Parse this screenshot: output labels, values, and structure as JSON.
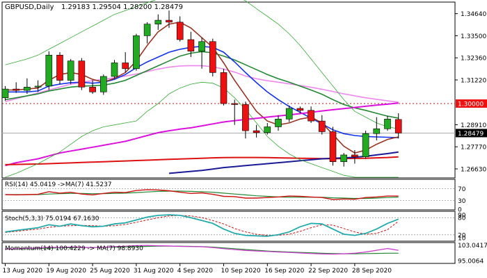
{
  "header": {
    "symbol": "GBPUSD,Daily",
    "ohlc": "1.29183 1.29504 1.28200 1.28479"
  },
  "colors": {
    "bull": "#22aa22",
    "bear": "#ee1111",
    "ma_dark": "#1a1a99",
    "ma_blue": "#1133ee",
    "ma_green": "#228833",
    "ma_magenta": "#dd11dd",
    "ma_pink": "#ee88ee",
    "ma_brown": "#993322",
    "ma_red": "#dd1111",
    "bollinger": "#33aa33",
    "level_label_bg": "#ee1111",
    "price_label_bg": "#000000"
  },
  "chart_data": {
    "type": "candlestick",
    "title": "GBPUSD,Daily",
    "x_tick_labels": [
      "13 Aug 2020",
      "19 Aug 2020",
      "25 Aug 2020",
      "31 Aug 2020",
      "4 Sep 2020",
      "10 Sep 2020",
      "16 Sep 2020",
      "22 Sep 2020",
      "28 Sep 2020"
    ],
    "x_tick_index": [
      0,
      4,
      8,
      12,
      16,
      20,
      24,
      28,
      32
    ],
    "price_axis": {
      "ylim": [
        1.262,
        1.352
      ],
      "tick_values": [
        1.3464,
        1.335,
        1.3236,
        1.3122,
        1.2891,
        1.2777,
        1.2663
      ],
      "tick_labels": [
        "1.34640",
        "1.33500",
        "1.32360",
        "1.31220",
        "1.28910",
        "1.27770",
        "1.26630"
      ],
      "level_value": 1.3,
      "level_label": "1.30000",
      "last_price": 1.28479,
      "last_price_label": "1.28479"
    },
    "candles": [
      {
        "o": 1.303,
        "h": 1.309,
        "l": 1.3015,
        "c": 1.3075
      },
      {
        "o": 1.3075,
        "h": 1.311,
        "l": 1.3055,
        "c": 1.3068
      },
      {
        "o": 1.3068,
        "h": 1.313,
        "l": 1.305,
        "c": 1.3085
      },
      {
        "o": 1.3085,
        "h": 1.312,
        "l": 1.306,
        "c": 1.309
      },
      {
        "o": 1.309,
        "h": 1.327,
        "l": 1.307,
        "c": 1.325
      },
      {
        "o": 1.325,
        "h": 1.3265,
        "l": 1.31,
        "c": 1.312
      },
      {
        "o": 1.312,
        "h": 1.323,
        "l": 1.31,
        "c": 1.322
      },
      {
        "o": 1.322,
        "h": 1.3235,
        "l": 1.307,
        "c": 1.3085
      },
      {
        "o": 1.3085,
        "h": 1.312,
        "l": 1.305,
        "c": 1.306
      },
      {
        "o": 1.306,
        "h": 1.315,
        "l": 1.3045,
        "c": 1.314
      },
      {
        "o": 1.314,
        "h": 1.3225,
        "l": 1.313,
        "c": 1.321
      },
      {
        "o": 1.321,
        "h": 1.3265,
        "l": 1.316,
        "c": 1.318
      },
      {
        "o": 1.318,
        "h": 1.336,
        "l": 1.317,
        "c": 1.335
      },
      {
        "o": 1.335,
        "h": 1.342,
        "l": 1.331,
        "c": 1.341
      },
      {
        "o": 1.341,
        "h": 1.346,
        "l": 1.338,
        "c": 1.343
      },
      {
        "o": 1.343,
        "h": 1.348,
        "l": 1.339,
        "c": 1.342
      },
      {
        "o": 1.342,
        "h": 1.345,
        "l": 1.332,
        "c": 1.333
      },
      {
        "o": 1.333,
        "h": 1.337,
        "l": 1.324,
        "c": 1.327
      },
      {
        "o": 1.327,
        "h": 1.334,
        "l": 1.318,
        "c": 1.332
      },
      {
        "o": 1.332,
        "h": 1.3335,
        "l": 1.314,
        "c": 1.316
      },
      {
        "o": 1.316,
        "h": 1.318,
        "l": 1.299,
        "c": 1.3
      },
      {
        "o": 1.3,
        "h": 1.302,
        "l": 1.289,
        "c": 1.2995
      },
      {
        "o": 1.2995,
        "h": 1.301,
        "l": 1.282,
        "c": 1.286
      },
      {
        "o": 1.286,
        "h": 1.289,
        "l": 1.2825,
        "c": 1.285
      },
      {
        "o": 1.285,
        "h": 1.29,
        "l": 1.284,
        "c": 1.288
      },
      {
        "o": 1.288,
        "h": 1.294,
        "l": 1.286,
        "c": 1.292
      },
      {
        "o": 1.292,
        "h": 1.299,
        "l": 1.2905,
        "c": 1.2975
      },
      {
        "o": 1.2975,
        "h": 1.2985,
        "l": 1.295,
        "c": 1.2965
      },
      {
        "o": 1.2965,
        "h": 1.2985,
        "l": 1.29,
        "c": 1.291
      },
      {
        "o": 1.291,
        "h": 1.294,
        "l": 1.284,
        "c": 1.2855
      },
      {
        "o": 1.2855,
        "h": 1.288,
        "l": 1.268,
        "c": 1.27
      },
      {
        "o": 1.27,
        "h": 1.2745,
        "l": 1.2675,
        "c": 1.2735
      },
      {
        "o": 1.2735,
        "h": 1.276,
        "l": 1.269,
        "c": 1.2725
      },
      {
        "o": 1.2725,
        "h": 1.286,
        "l": 1.2715,
        "c": 1.2845
      },
      {
        "o": 1.2845,
        "h": 1.293,
        "l": 1.281,
        "c": 1.287
      },
      {
        "o": 1.287,
        "h": 1.2935,
        "l": 1.286,
        "c": 1.292
      },
      {
        "o": 1.2918,
        "h": 1.295,
        "l": 1.282,
        "c": 1.2848
      }
    ],
    "ma_lines": [
      {
        "key": "ma_pink",
        "values": [
          1.301,
          1.3025,
          1.304,
          1.3055,
          1.307,
          1.3085,
          1.31,
          1.311,
          1.3118,
          1.3125,
          1.3133,
          1.3142,
          1.3152,
          1.3165,
          1.3178,
          1.3188,
          1.3194,
          1.3196,
          1.3195,
          1.319,
          1.3178,
          1.3162,
          1.3142,
          1.3128,
          1.3118,
          1.311,
          1.3102,
          1.3093,
          1.3084,
          1.3074,
          1.3062,
          1.305,
          1.304,
          1.303,
          1.3022,
          1.3014,
          1.3007
        ]
      },
      {
        "key": "ma_green",
        "values": [
          1.302,
          1.303,
          1.304,
          1.305,
          1.3065,
          1.3075,
          1.3085,
          1.309,
          1.3092,
          1.3095,
          1.3105,
          1.312,
          1.3145,
          1.317,
          1.3195,
          1.322,
          1.3245,
          1.326,
          1.3268,
          1.3262,
          1.3245,
          1.3225,
          1.32,
          1.3175,
          1.315,
          1.3128,
          1.311,
          1.309,
          1.307,
          1.3048,
          1.302,
          1.2995,
          1.2978,
          1.2965,
          1.295,
          1.2935,
          1.2925
        ]
      },
      {
        "key": "ma_blue",
        "values": [
          1.306,
          1.306,
          1.306,
          1.3065,
          1.309,
          1.31,
          1.3108,
          1.311,
          1.3105,
          1.311,
          1.3125,
          1.315,
          1.3185,
          1.3215,
          1.324,
          1.3265,
          1.328,
          1.329,
          1.3295,
          1.329,
          1.3265,
          1.3215,
          1.316,
          1.3108,
          1.306,
          1.302,
          1.2985,
          1.2955,
          1.2925,
          1.2895,
          1.2865,
          1.2845,
          1.2835,
          1.283,
          1.2828,
          1.2826,
          1.2824
        ]
      },
      {
        "key": "ma_brown",
        "values": [
          1.307,
          1.307,
          1.3075,
          1.308,
          1.312,
          1.315,
          1.316,
          1.315,
          1.3125,
          1.311,
          1.313,
          1.316,
          1.322,
          1.33,
          1.337,
          1.341,
          1.342,
          1.339,
          1.334,
          1.329,
          1.321,
          1.312,
          1.304,
          1.296,
          1.291,
          1.289,
          1.29,
          1.292,
          1.293,
          1.29,
          1.284,
          1.278,
          1.2745,
          1.276,
          1.279,
          1.2815,
          1.2828
        ]
      },
      {
        "key": "ma_magenta",
        "values": [
          1.268,
          1.2695,
          1.2705,
          1.2715,
          1.273,
          1.2745,
          1.2755,
          1.2765,
          1.2775,
          1.2785,
          1.2795,
          1.2805,
          1.282,
          1.2835,
          1.285,
          1.286,
          1.2868,
          1.2875,
          1.2885,
          1.2895,
          1.2905,
          1.2912,
          1.2918,
          1.2924,
          1.293,
          1.2936,
          1.2942,
          1.2948,
          1.2955,
          1.2962,
          1.2968,
          1.2974,
          1.298,
          1.2986,
          1.2992,
          1.2997,
          1.3003
        ]
      },
      {
        "key": "ma_red",
        "values": [
          1.2685,
          1.2686,
          1.2687,
          1.2688,
          1.269,
          1.2692,
          1.2694,
          1.2696,
          1.2698,
          1.27,
          1.2702,
          1.2704,
          1.2706,
          1.2708,
          1.271,
          1.2712,
          1.2714,
          1.2716,
          1.2718,
          1.272,
          1.2721,
          1.2722,
          1.2722,
          1.2722,
          1.2721,
          1.272,
          1.2719,
          1.2718,
          1.2717,
          1.2716,
          1.2716,
          1.2716,
          1.2717,
          1.2718,
          1.272,
          1.2722,
          1.2725
        ]
      },
      {
        "key": "ma_dark",
        "start": 15,
        "values": [
          1.264,
          1.2645,
          1.265,
          1.2655,
          1.2662,
          1.267,
          1.2675,
          1.268,
          1.2685,
          1.269,
          1.2695,
          1.27,
          1.2705,
          1.271,
          1.2715,
          1.2718,
          1.272,
          1.2723,
          1.2728,
          1.2735,
          1.2742,
          1.275
        ]
      },
      {
        "key": "bollinger",
        "values": [
          1.32,
          1.3215,
          1.323,
          1.325,
          1.328,
          1.331,
          1.334,
          1.337,
          1.34,
          1.343,
          1.346,
          1.348,
          1.35,
          1.352,
          1.354,
          1.356,
          1.3575,
          1.3585,
          1.359,
          1.359,
          1.358,
          1.356,
          1.353,
          1.349,
          1.345,
          1.341,
          1.336,
          1.33,
          1.323,
          1.316,
          1.309,
          1.302,
          1.296,
          1.293,
          1.29,
          1.288,
          1.287
        ]
      },
      {
        "key": "bollinger",
        "values": [
          1.262,
          1.264,
          1.2665,
          1.269,
          1.272,
          1.275,
          1.279,
          1.283,
          1.286,
          1.288,
          1.289,
          1.29,
          1.291,
          1.296,
          1.3,
          1.305,
          1.308,
          1.31,
          1.311,
          1.3105,
          1.308,
          1.303,
          1.297,
          1.29,
          1.283,
          1.278,
          1.274,
          1.271,
          1.269,
          1.267,
          1.265,
          1.263,
          1.262,
          1.262,
          1.262,
          1.262,
          1.262
        ]
      }
    ],
    "rsi": {
      "label": "RSI(14) 45.0419  ->MA(7) 41.5237",
      "ylim": [
        0,
        100
      ],
      "tick_values": [
        70,
        30,
        0
      ],
      "tick_labels": [
        "70",
        "30",
        "0"
      ],
      "levels": [
        70,
        30
      ],
      "rsi_values": [
        50,
        49,
        50,
        51,
        60,
        55,
        58,
        52,
        49,
        54,
        58,
        57,
        64,
        67,
        66,
        63,
        58,
        54,
        56,
        51,
        44,
        43,
        38,
        38,
        40,
        42,
        45,
        44,
        42,
        40,
        33,
        35,
        34,
        40,
        42,
        45,
        45
      ],
      "ma_values": [
        50,
        50,
        50,
        50,
        52,
        53,
        54,
        54,
        53,
        53,
        54,
        55,
        57,
        59,
        61,
        62,
        62,
        61,
        60,
        58,
        55,
        52,
        49,
        46,
        44,
        42,
        41,
        41,
        41,
        41,
        39,
        38,
        37,
        37,
        38,
        40,
        41.5
      ]
    },
    "stoch": {
      "label": "Stoch(5,3,3) 75.0194 67.1630",
      "ylim": [
        0,
        100
      ],
      "tick_values": [
        90,
        80,
        20,
        10
      ],
      "tick_labels": [
        "90",
        "80",
        "20",
        "10"
      ],
      "levels": [
        80,
        20
      ],
      "k_values": [
        30,
        35,
        40,
        45,
        55,
        50,
        58,
        52,
        48,
        50,
        58,
        62,
        72,
        82,
        88,
        90,
        88,
        80,
        70,
        60,
        40,
        25,
        18,
        16,
        15,
        20,
        30,
        48,
        60,
        58,
        40,
        22,
        18,
        25,
        40,
        60,
        75
      ],
      "d_values": [
        28,
        32,
        36,
        40,
        46,
        50,
        52,
        53,
        52,
        50,
        52,
        56,
        64,
        72,
        80,
        86,
        88,
        86,
        80,
        70,
        58,
        42,
        30,
        22,
        18,
        18,
        22,
        32,
        45,
        55,
        54,
        42,
        30,
        22,
        25,
        38,
        67
      ]
    },
    "momentum": {
      "label": "Momentum(14) 100.4229  -> MA(7) 98.8930",
      "ylim": [
        94.0,
        104.0
      ],
      "tick_values": [
        103.0417,
        95.0064
      ],
      "tick_labels": [
        "103.0417",
        "95.0064"
      ],
      "mom_values": [
        101.0,
        101.2,
        101.4,
        101.5,
        102.0,
        101.8,
        102.1,
        101.9,
        101.8,
        102.0,
        102.3,
        102.5,
        102.8,
        102.9,
        102.7,
        102.6,
        102.4,
        102.3,
        102.2,
        101.8,
        101.2,
        100.7,
        100.3,
        100.0,
        99.8,
        99.5,
        99.3,
        99.0,
        98.7,
        98.5,
        98.4,
        98.6,
        98.9,
        99.5,
        100.4,
        101.3,
        100.4
      ],
      "ma_values": [
        101.0,
        101.1,
        101.2,
        101.3,
        101.5,
        101.6,
        101.7,
        101.8,
        101.8,
        101.9,
        102.0,
        102.1,
        102.2,
        102.4,
        102.5,
        102.5,
        102.5,
        102.4,
        102.3,
        102.0,
        101.6,
        101.2,
        100.8,
        100.4,
        100.0,
        99.7,
        99.5,
        99.3,
        99.1,
        98.9,
        98.7,
        98.6,
        98.6,
        98.7,
        98.8,
        98.9,
        98.9
      ]
    }
  }
}
